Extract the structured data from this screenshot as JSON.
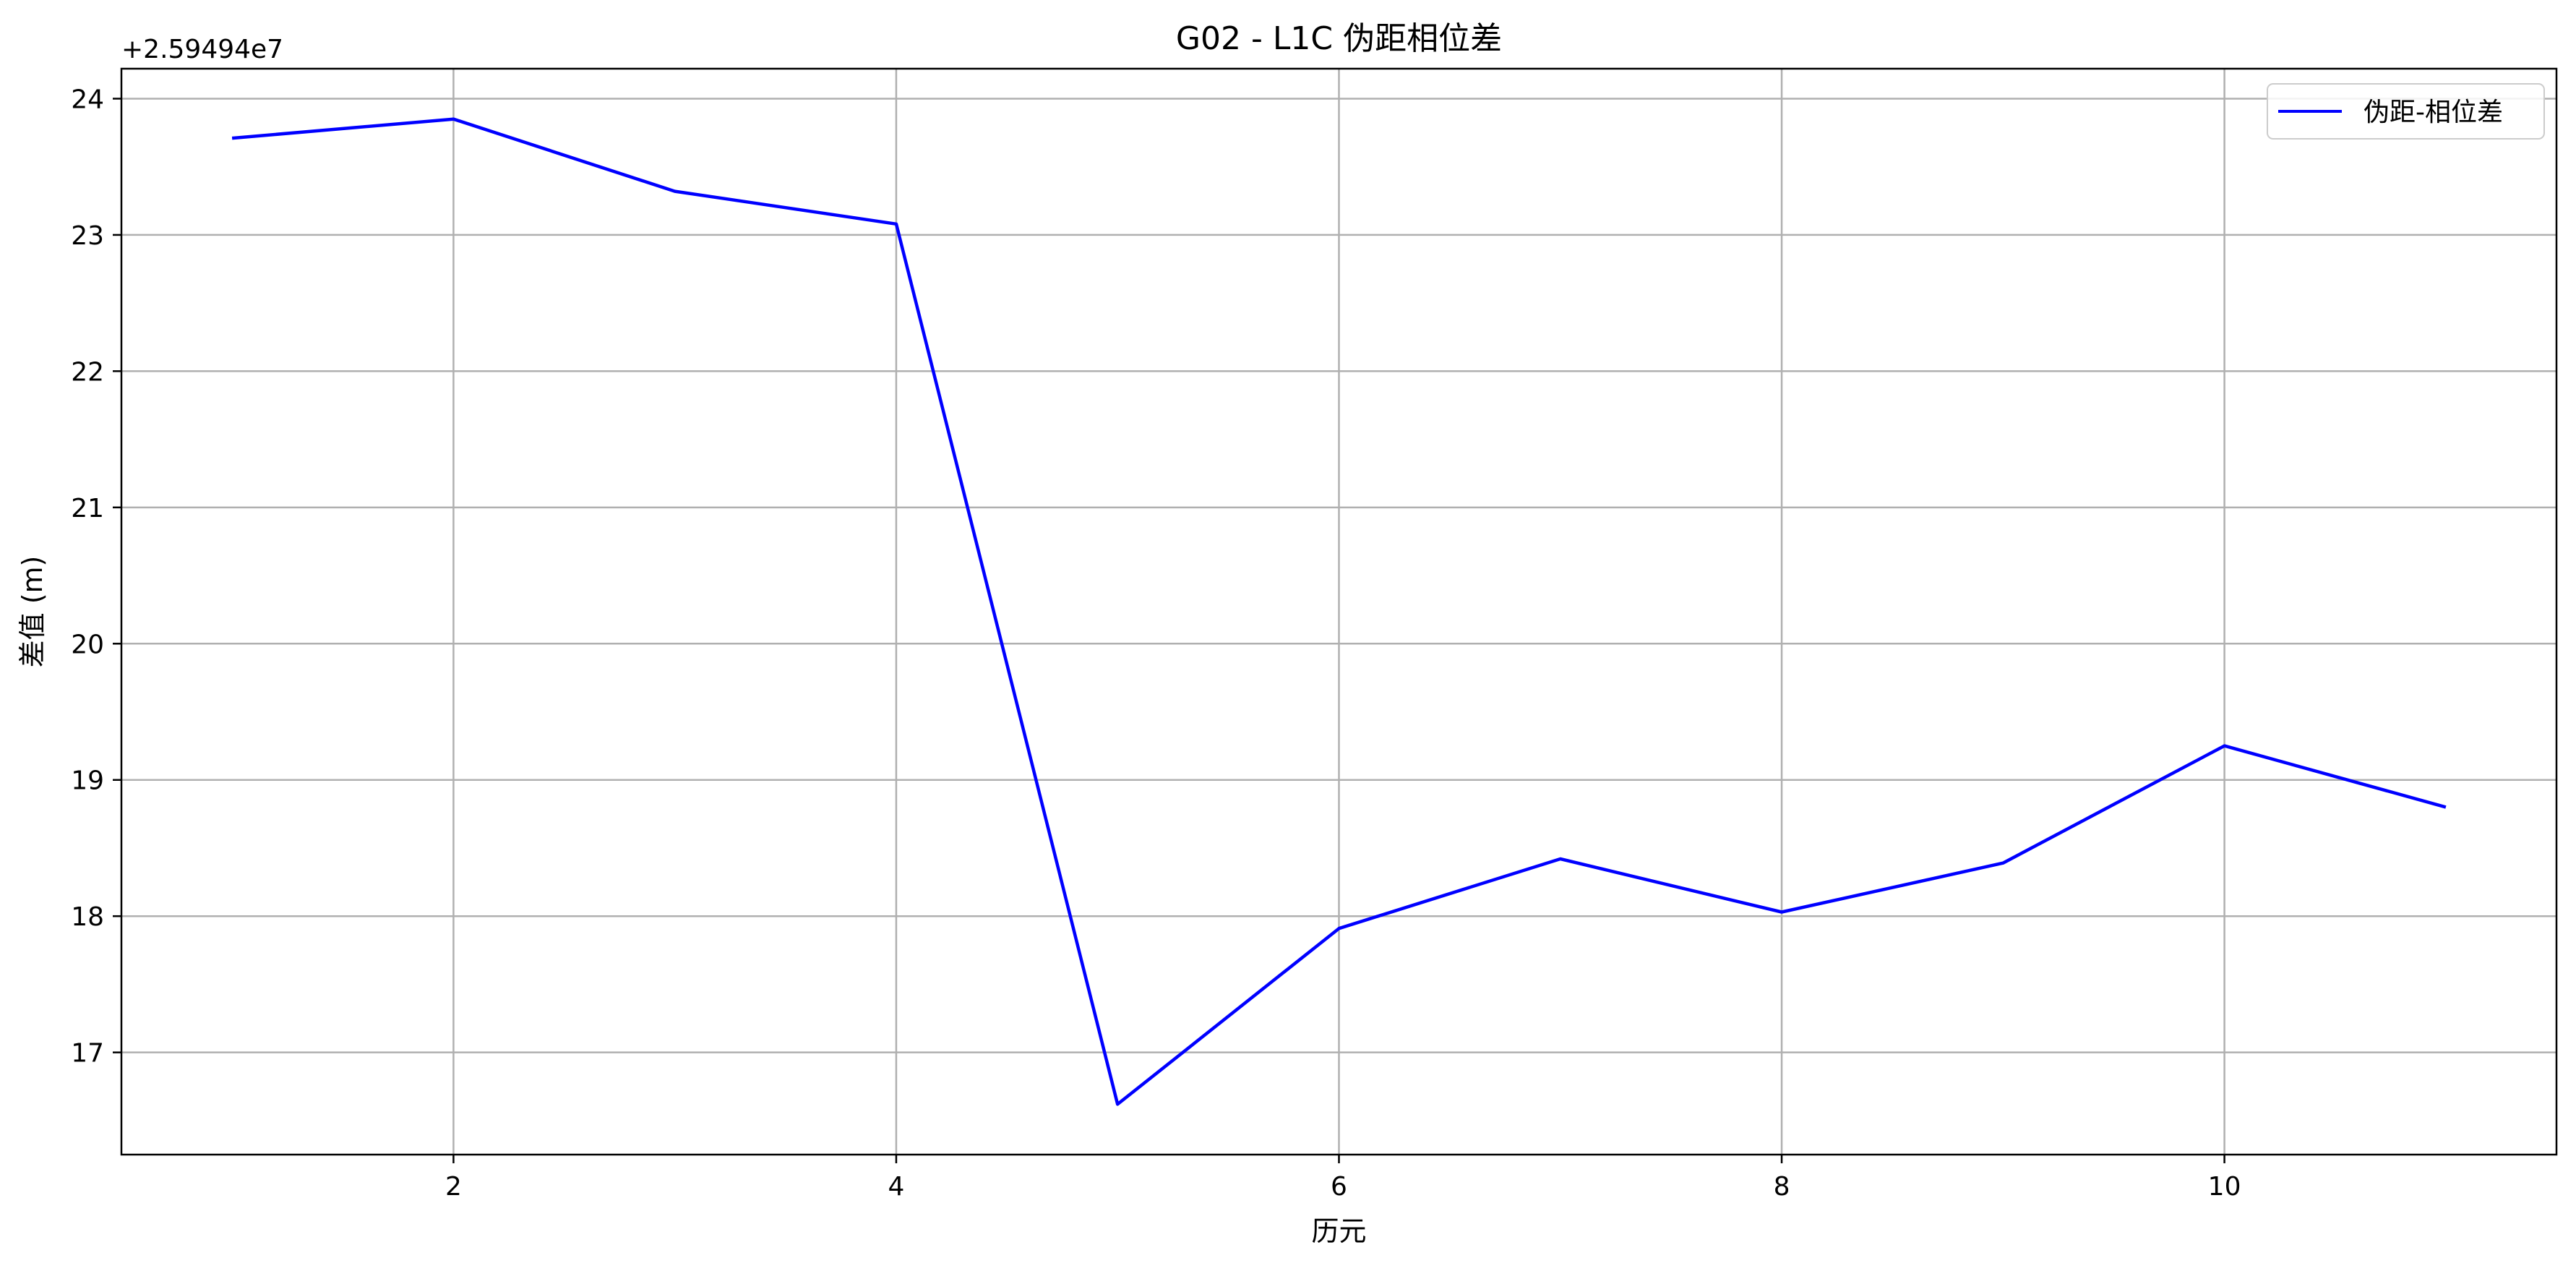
{
  "chart_data": {
    "type": "line",
    "title": "G02 - L1C 伪距相位差",
    "xlabel": "历元",
    "ylabel": "差值 (m)",
    "offset_label": "+2.59494e7",
    "x": [
      1,
      2,
      3,
      4,
      5,
      6,
      7,
      8,
      9,
      10,
      11
    ],
    "series": [
      {
        "name": "伪距-相位差",
        "color": "#0000ff",
        "values": [
          23.71,
          23.85,
          23.32,
          23.08,
          16.62,
          17.91,
          18.42,
          18.03,
          18.39,
          19.25,
          18.8
        ]
      }
    ],
    "xlim": [
      0.5,
      11.5
    ],
    "ylim": [
      16.25,
      24.22
    ],
    "xticks": [
      2,
      4,
      6,
      8,
      10
    ],
    "yticks": [
      17,
      18,
      19,
      20,
      21,
      22,
      23,
      24
    ],
    "grid": true,
    "legend_position": "top-right"
  }
}
